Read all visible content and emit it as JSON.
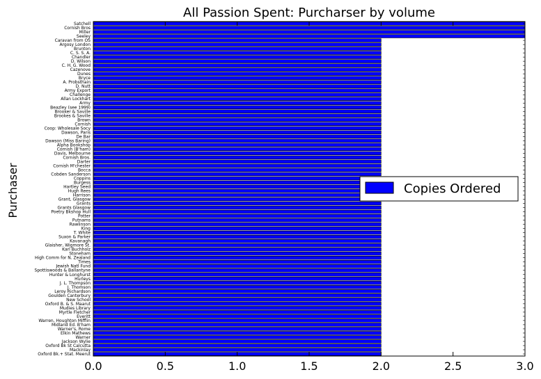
{
  "chart_data": {
    "type": "bar",
    "orientation": "horizontal",
    "title": "All Passion Spent: Purcharser by volume",
    "ylabel": "Purchaser",
    "xlabel": "",
    "xlim": [
      0,
      3
    ],
    "xticks": [
      "0.0",
      "0.5",
      "1.0",
      "1.5",
      "2.0",
      "2.5",
      "3.0"
    ],
    "grid": false,
    "legend_position": "center-right",
    "series": [
      {
        "name": "Copies Ordered",
        "color": "#0000ff",
        "categories": [
          "Satchell",
          "Cornish Bros",
          "Miller",
          "Seeley",
          "Caravan from OS",
          "Argosy London",
          "Brunton",
          "C. S. S. A.",
          "Chandler",
          "D. Wilson",
          "C. H. G. Wood",
          "Cazenove",
          "Dunes",
          "Bryce",
          "A. Probsthain",
          "D. Nutt",
          "Army Export",
          "Challenge",
          "Allan Lockhart",
          "Army",
          "Beazley (see 1999)",
          "Brooker & Saville",
          "Brookes & Saville",
          "Brown",
          "Cornish",
          "Coop: Wholesale Socy",
          "Dawson, Paris",
          "De Bar",
          "Dawson (Miss Baring)",
          "Alpha Bookshop",
          "Cornish (B'ham)",
          "Davis, Melbourne",
          "Cornish Bros.",
          "Darter",
          "Cornish M'chester",
          "Bocca",
          "Cobden Sanderson",
          "Coppins",
          "Burgess",
          "Hartley Seed",
          "Hugh Rees",
          "Harrison",
          "Grant, Glasgow",
          "Grants",
          "Grants Glasgow",
          "Poetry Bkshop Hull",
          "Potter",
          "Putnams",
          "Rawlinson",
          "King",
          "T. White",
          "Suxon & Parker",
          "Kavanagh",
          "Glaisher, Wigmore St.",
          "Karl Buchholz",
          "Stoneham",
          "High Comm for N. Zealand",
          "Times",
          "Jewish Natl Fund",
          "Spottiswoods & Ballantyne",
          "Hunter & Longhurst",
          "Hurleys",
          "J. L. Thompson",
          "J. Thomson",
          "Leroy Richardson",
          "Goulden Canterbury",
          "New School",
          "Oxford B. & S. Maarut",
          "Mudies Library",
          "Myrtle Fletcher",
          "Everitt",
          "Warren, Houghton Mifflin",
          "Midland Ed. B'ham",
          "Warner's, Rome",
          "Elkin Mathews",
          "Warner",
          "Jackson Wylie",
          "Oxford Bk St Calcutta",
          "Mackinlay",
          "Oxford Bk.+ Stat. Meerut"
        ],
        "values": [
          3,
          3,
          3,
          3,
          2,
          2,
          2,
          2,
          2,
          2,
          2,
          2,
          2,
          2,
          2,
          2,
          2,
          2,
          2,
          2,
          2,
          2,
          2,
          2,
          2,
          2,
          2,
          2,
          2,
          2,
          2,
          2,
          2,
          2,
          2,
          2,
          2,
          2,
          2,
          2,
          2,
          2,
          2,
          2,
          2,
          2,
          2,
          2,
          2,
          2,
          2,
          2,
          2,
          2,
          2,
          2,
          2,
          2,
          2,
          2,
          2,
          2,
          2,
          2,
          2,
          2,
          2,
          2,
          2,
          2,
          2,
          2,
          2,
          2,
          2,
          2,
          2,
          2,
          2,
          2
        ]
      }
    ]
  }
}
